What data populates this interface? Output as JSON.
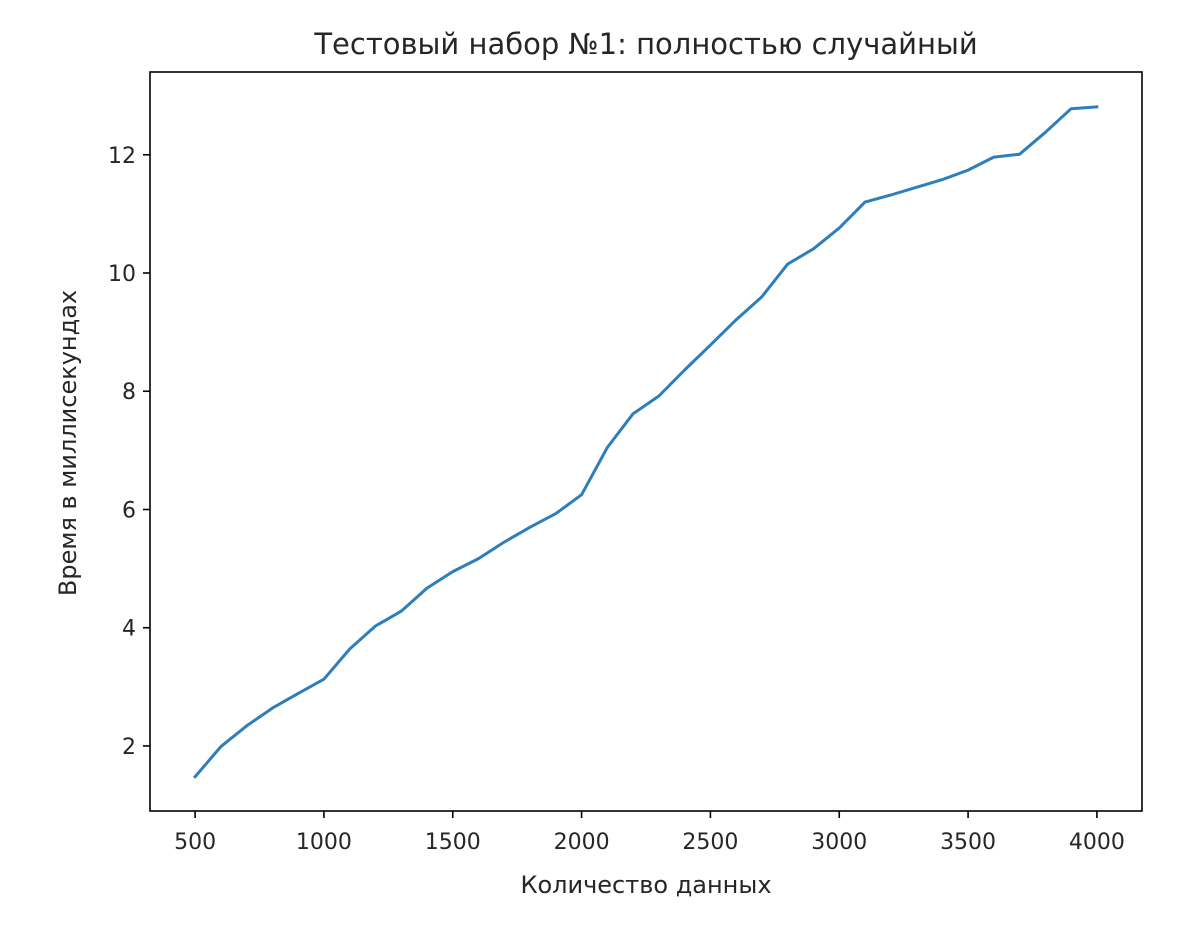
{
  "chart_data": {
    "type": "line",
    "title": "Тестовый набор №1: полностью случайный",
    "xlabel": "Количество данных",
    "ylabel": "Время в миллисекундах",
    "xlim": [
      325,
      4175
    ],
    "ylim": [
      0.9,
      13.4
    ],
    "x_ticks": [
      500,
      1000,
      1500,
      2000,
      2500,
      3000,
      3500,
      4000
    ],
    "y_ticks": [
      2,
      4,
      6,
      8,
      10,
      12
    ],
    "grid": false,
    "series": [
      {
        "color": "#2f7ebc",
        "x": [
          500,
          600,
          700,
          800,
          900,
          1000,
          1100,
          1200,
          1300,
          1400,
          1500,
          1600,
          1700,
          1800,
          1900,
          2000,
          2100,
          2200,
          2300,
          2400,
          2500,
          2600,
          2700,
          2800,
          2900,
          3000,
          3100,
          3200,
          3300,
          3400,
          3500,
          3600,
          3700,
          3800,
          3900,
          4000
        ],
        "y": [
          1.48,
          1.99,
          2.34,
          2.64,
          2.89,
          3.13,
          3.64,
          4.03,
          4.28,
          4.67,
          4.95,
          5.17,
          5.45,
          5.7,
          5.93,
          6.25,
          7.05,
          7.62,
          7.92,
          8.36,
          8.78,
          9.21,
          9.6,
          10.15,
          10.41,
          10.76,
          11.2,
          11.32,
          11.45,
          11.58,
          11.74,
          11.96,
          12.01,
          12.38,
          12.78,
          12.81
        ]
      }
    ]
  }
}
